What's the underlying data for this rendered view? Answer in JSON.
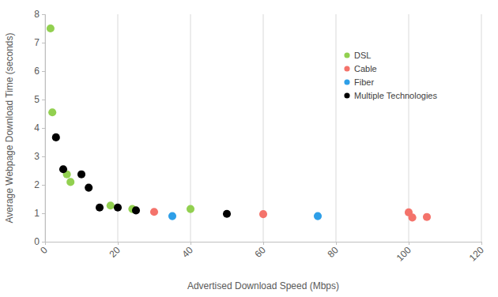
{
  "chart_data": {
    "type": "scatter",
    "x_label": "Advertised Download Speed (Mbps)",
    "y_label": "Average Webpage Download Time (seconds)",
    "xlim": [
      0,
      120
    ],
    "xticks": [
      0,
      20,
      40,
      60,
      80,
      100,
      120
    ],
    "ylim": [
      0,
      8
    ],
    "yticks": [
      0,
      1,
      2,
      3,
      4,
      5,
      6,
      7,
      8
    ],
    "grid": true,
    "legend": "top-right",
    "marker": "circle",
    "series": [
      {
        "name": "DSL",
        "color": "#92d050",
        "x": [
          1.5,
          2,
          6,
          7,
          18,
          24,
          40
        ],
        "values": [
          7.5,
          4.55,
          2.37,
          2.1,
          1.27,
          1.15,
          1.15
        ]
      },
      {
        "name": "Cable",
        "color": "#f4736b",
        "x": [
          30,
          60,
          100,
          101,
          105
        ],
        "values": [
          1.05,
          0.97,
          1.03,
          0.85,
          0.87
        ]
      },
      {
        "name": "Fiber",
        "color": "#2e9fe8",
        "x": [
          35,
          75
        ],
        "values": [
          0.9,
          0.9
        ]
      },
      {
        "name": "Multiple Technologies",
        "color": "#000000",
        "x": [
          3,
          5,
          10,
          12,
          15,
          20,
          25,
          50
        ],
        "values": [
          3.67,
          2.55,
          2.37,
          1.9,
          1.2,
          1.2,
          1.1,
          0.98
        ]
      }
    ]
  }
}
